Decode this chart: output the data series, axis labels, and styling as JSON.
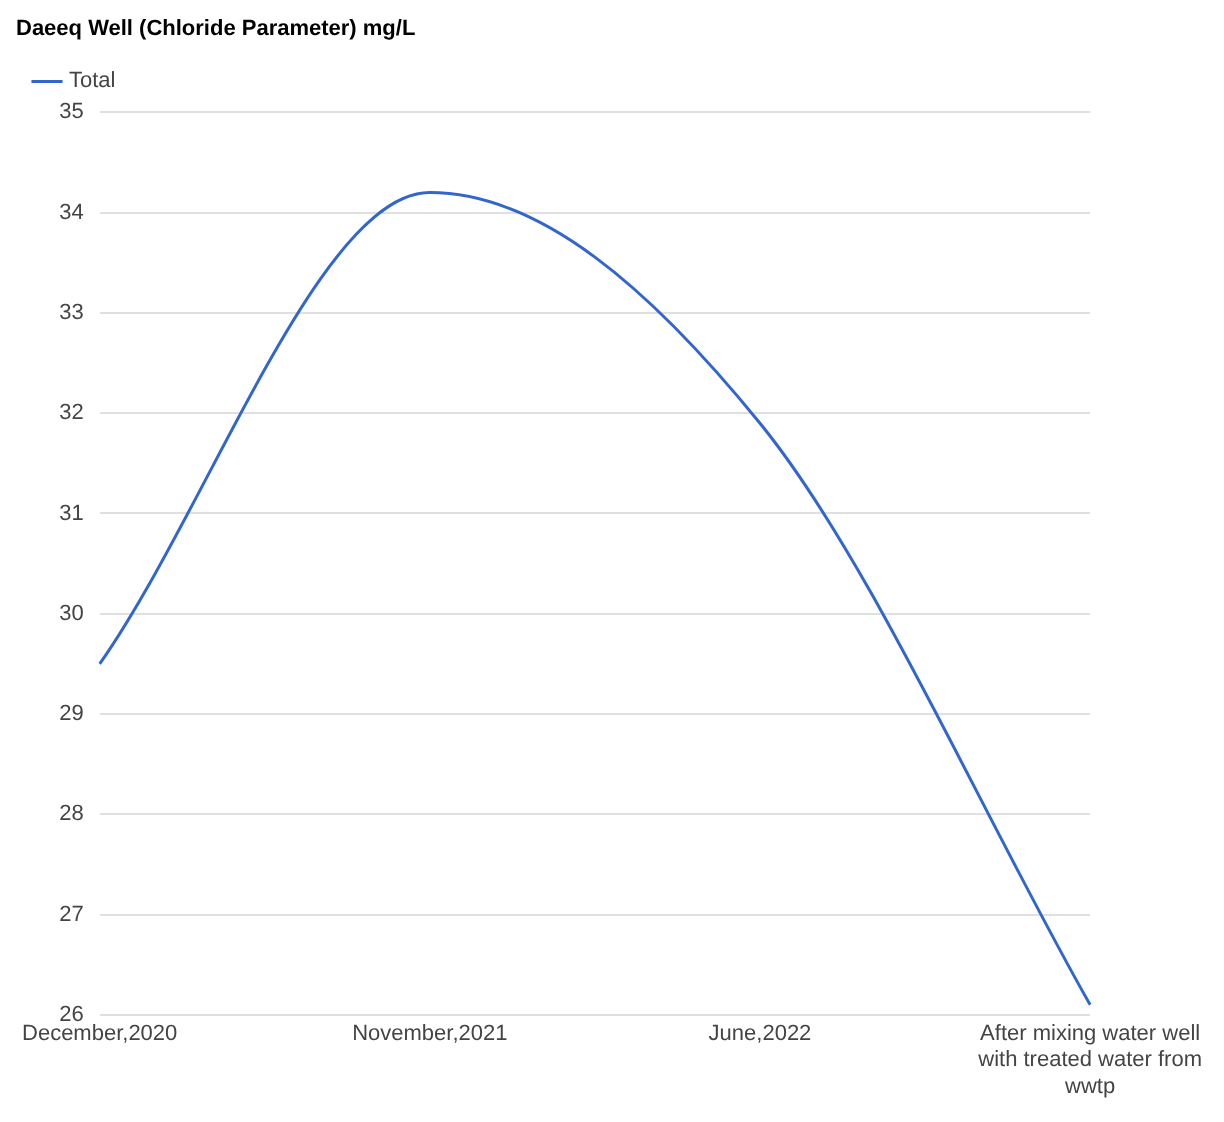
{
  "chart_data": {
    "type": "line",
    "title": "Daeeq Well (Chloride Parameter) mg/L",
    "categories": [
      "December,2020",
      "November,2021",
      "June,2022",
      "After mixing water well with treated water from wwtp"
    ],
    "series": [
      {
        "name": "Total",
        "color": "#3366cc",
        "values": [
          29.5,
          34.2,
          31.9,
          26.1
        ]
      }
    ],
    "ylim": [
      26,
      35
    ],
    "yticks": [
      26,
      27,
      28,
      29,
      30,
      31,
      32,
      33,
      34,
      35
    ],
    "grid": "y",
    "legend": "top left",
    "marker": "none"
  }
}
